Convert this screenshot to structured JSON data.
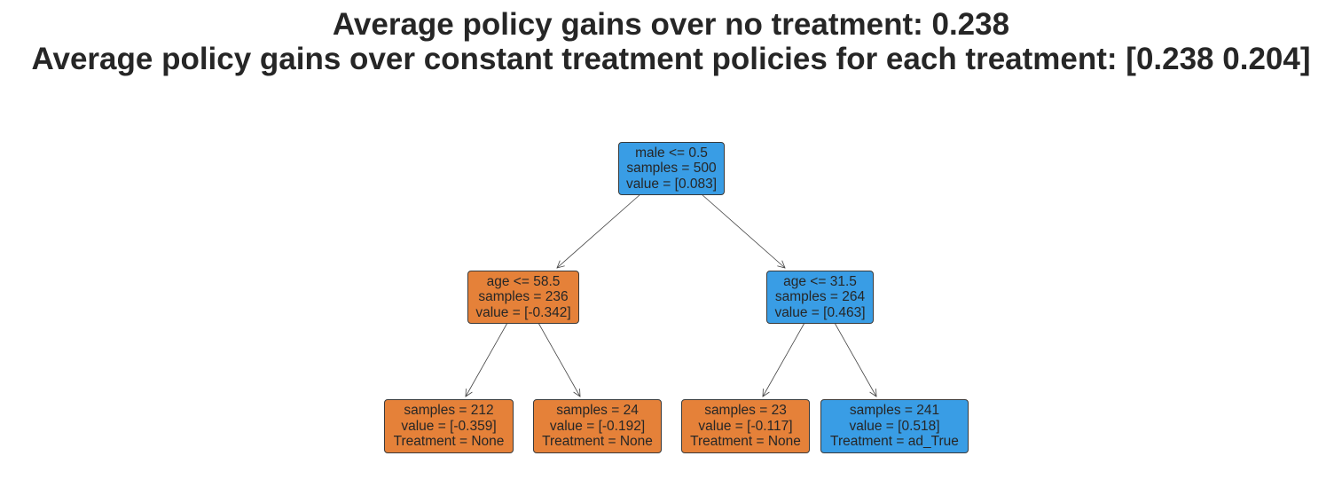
{
  "title": {
    "line1": "Average policy gains over no treatment: 0.238",
    "line2": "Average policy gains over constant treatment policies for each treatment: [0.238 0.204]"
  },
  "colors": {
    "orange": "#e58139",
    "blue": "#399de5",
    "edge": "#444444"
  },
  "tree": {
    "root": {
      "fill": "blue",
      "lines": [
        "male <= 0.5",
        "samples = 500",
        "value = [0.083]"
      ]
    },
    "left": {
      "fill": "orange",
      "lines": [
        "age <= 58.5",
        "samples = 236",
        "value = [-0.342]"
      ]
    },
    "right": {
      "fill": "blue",
      "lines": [
        "age <= 31.5",
        "samples = 264",
        "value = [0.463]"
      ]
    },
    "left_left": {
      "fill": "orange",
      "lines": [
        "samples = 212",
        "value = [-0.359]",
        "Treatment = None"
      ]
    },
    "left_right": {
      "fill": "orange",
      "lines": [
        "samples = 24",
        "value = [-0.192]",
        "Treatment = None"
      ]
    },
    "right_left": {
      "fill": "orange",
      "lines": [
        "samples = 23",
        "value = [-0.117]",
        "Treatment = None"
      ]
    },
    "right_right": {
      "fill": "blue",
      "lines": [
        "samples = 241",
        "value = [0.518]",
        "Treatment = ad_True"
      ]
    }
  }
}
